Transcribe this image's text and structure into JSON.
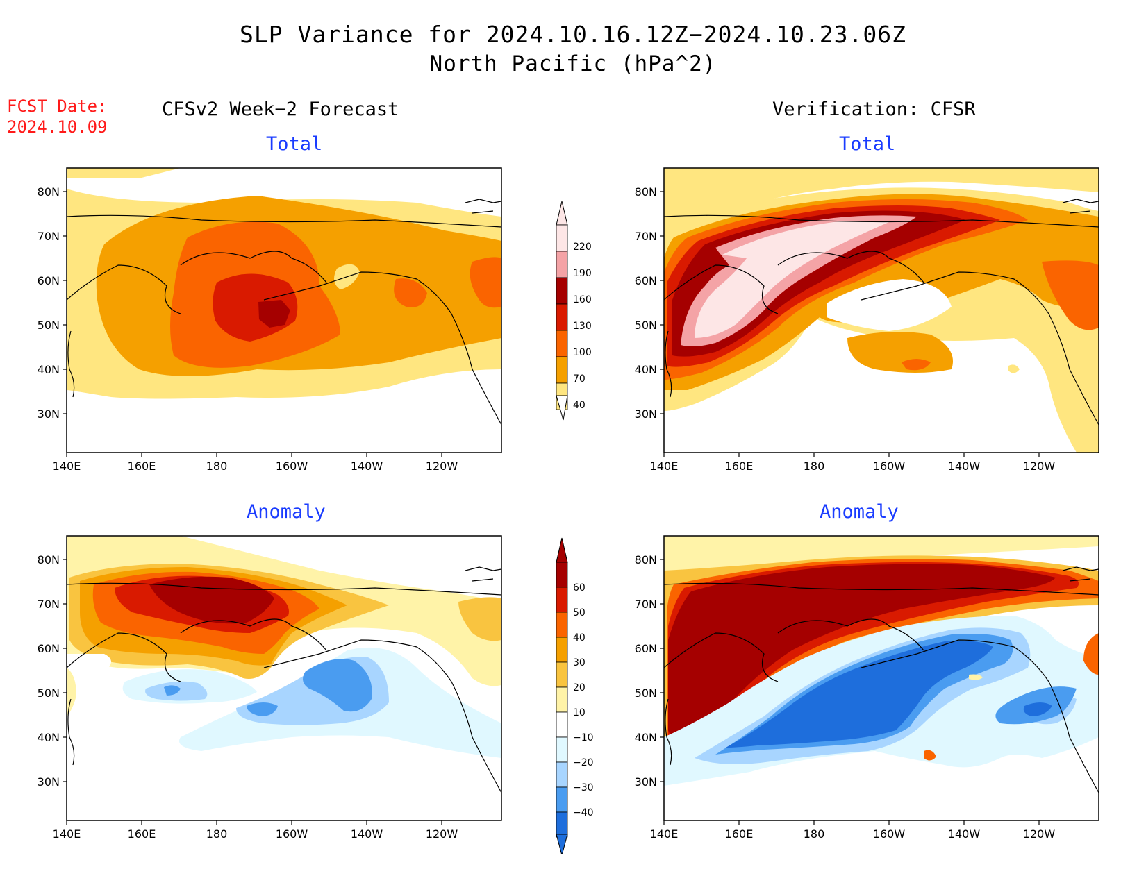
{
  "title": {
    "line1": "SLP Variance for 2024.10.16.12Z−2024.10.23.06Z",
    "line2": "North Pacific (hPa^2)"
  },
  "forecast_date": {
    "label": "FCST Date:",
    "value": "2024.10.09"
  },
  "columns": {
    "left": "CFSv2 Week−2 Forecast",
    "right": "Verification: CFSR"
  },
  "panels": [
    {
      "subtitle": "Total",
      "field": "total",
      "source": "forecast"
    },
    {
      "subtitle": "Total",
      "field": "total",
      "source": "verification"
    },
    {
      "subtitle": "Anomaly",
      "field": "anomaly",
      "source": "forecast"
    },
    {
      "subtitle": "Anomaly",
      "field": "anomaly",
      "source": "verification"
    }
  ],
  "axes": {
    "lon_labels": [
      "140E",
      "160E",
      "180",
      "160W",
      "140W",
      "120W"
    ],
    "lat_labels": [
      "80N",
      "70N",
      "60N",
      "50N",
      "40N",
      "30N"
    ]
  },
  "colorbars": {
    "total": {
      "levels": [
        "220",
        "190",
        "160",
        "130",
        "100",
        "70",
        "40"
      ],
      "colors": [
        "#fde6e6",
        "#f4a3a6",
        "#a50000",
        "#d91a00",
        "#fa6400",
        "#f5a000",
        "#ffe680"
      ]
    },
    "anomaly": {
      "levels": [
        "60",
        "50",
        "40",
        "30",
        "20",
        "10",
        "−10",
        "−20",
        "−30",
        "−40"
      ],
      "colors": [
        "#a50000",
        "#d91a00",
        "#fa6400",
        "#f5a000",
        "#f9c440",
        "#fff3a8",
        "#ffffff",
        "#e0f8ff",
        "#a8d5ff",
        "#4a9cf0",
        "#1e6edc"
      ]
    }
  },
  "colors": {
    "total_light": "#ffe680",
    "total_med": "#f5a000",
    "total_orange": "#fa6400",
    "total_red": "#d91a00",
    "total_dark": "#a50000",
    "total_pink": "#f4a3a6",
    "total_pale": "#fde6e6",
    "anom_pos_pale": "#fff3a8",
    "anom_pos_1": "#f9c440",
    "anom_pos_2": "#f5a000",
    "anom_pos_3": "#fa6400",
    "anom_pos_4": "#d91a00",
    "anom_pos_5": "#a50000",
    "anom_neg_pale": "#e0f8ff",
    "anom_neg_1": "#a8d5ff",
    "anom_neg_2": "#4a9cf0",
    "anom_neg_3": "#1e6edc"
  }
}
